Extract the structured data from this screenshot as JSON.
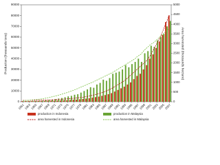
{
  "chart_data": {
    "type": "bar",
    "categories": [
      "1961",
      null,
      "1963",
      null,
      "1965",
      null,
      "1967",
      null,
      "1969",
      null,
      "1971",
      null,
      "1973",
      null,
      "1975",
      null,
      "1977",
      null,
      "1979",
      null,
      "1981",
      null,
      "1983",
      null,
      "1985",
      null,
      "1987",
      null,
      "1989",
      null,
      "1991",
      null,
      "1993",
      null,
      "1995",
      null,
      "1997",
      null,
      "1999",
      null,
      "2001",
      null,
      "2003",
      null,
      "2005",
      null,
      "2007"
    ],
    "y_label": "Production (thousands tons)",
    "y2_label": "Area harvested (thousands hectare)",
    "ylim": [
      0,
      90000
    ],
    "yticks": [
      0,
      10000,
      20000,
      30000,
      40000,
      50000,
      60000,
      70000,
      80000,
      90000
    ],
    "y2lim": [
      0,
      5000
    ],
    "y2ticks": [
      0,
      500,
      1000,
      1500,
      2000,
      2500,
      3000,
      3500,
      4000,
      4500,
      5000
    ],
    "series": [
      {
        "name": "production in Indonesia",
        "type": "bar",
        "color": "#c8321e",
        "values": [
          600,
          620,
          650,
          680,
          700,
          720,
          750,
          800,
          850,
          900,
          1000,
          1100,
          1200,
          1300,
          1400,
          1600,
          1800,
          2000,
          2300,
          2600,
          2900,
          3300,
          3800,
          4300,
          4800,
          5500,
          6200,
          7000,
          8000,
          9500,
          11000,
          12500,
          14000,
          16000,
          18000,
          21000,
          24000,
          26000,
          30000,
          34000,
          40000,
          44000,
          50000,
          56000,
          62000,
          74000,
          80000
        ]
      },
      {
        "name": "production in Malaysia",
        "type": "bar",
        "color": "#6aa536",
        "values": [
          500,
          550,
          600,
          700,
          800,
          950,
          1100,
          1300,
          1600,
          2000,
          2500,
          3000,
          3500,
          4200,
          5000,
          5500,
          6500,
          7000,
          8500,
          10000,
          11500,
          13500,
          13000,
          16000,
          17500,
          20500,
          19500,
          22000,
          26000,
          27000,
          28000,
          30000,
          34000,
          32000,
          35000,
          37000,
          40000,
          37000,
          45000,
          47000,
          52000,
          51000,
          57000,
          60000,
          63000,
          70000,
          75000
        ]
      },
      {
        "name": "area harvested in Indonesia",
        "type": "line",
        "axis": "y2",
        "color": "#b01010",
        "values": [
          70,
          72,
          74,
          76,
          78,
          80,
          85,
          90,
          95,
          100,
          110,
          120,
          130,
          140,
          150,
          165,
          180,
          200,
          220,
          240,
          270,
          300,
          340,
          380,
          430,
          480,
          540,
          620,
          700,
          800,
          900,
          1000,
          1100,
          1250,
          1400,
          1550,
          1700,
          1850,
          2000,
          2150,
          2400,
          2700,
          3000,
          3300,
          3700,
          4100,
          4500
        ]
      },
      {
        "name": "area harvested in Malaysia",
        "type": "line",
        "axis": "y2",
        "color": "#7cc043",
        "values": [
          60,
          70,
          80,
          95,
          110,
          130,
          150,
          180,
          210,
          250,
          290,
          330,
          380,
          430,
          480,
          540,
          600,
          670,
          740,
          810,
          880,
          950,
          1020,
          1100,
          1180,
          1260,
          1340,
          1420,
          1500,
          1600,
          1700,
          1800,
          1900,
          2000,
          2100,
          2200,
          2350,
          2450,
          2650,
          2800,
          2950,
          3050,
          3200,
          3350,
          3500,
          3650,
          3800
        ]
      }
    ]
  }
}
